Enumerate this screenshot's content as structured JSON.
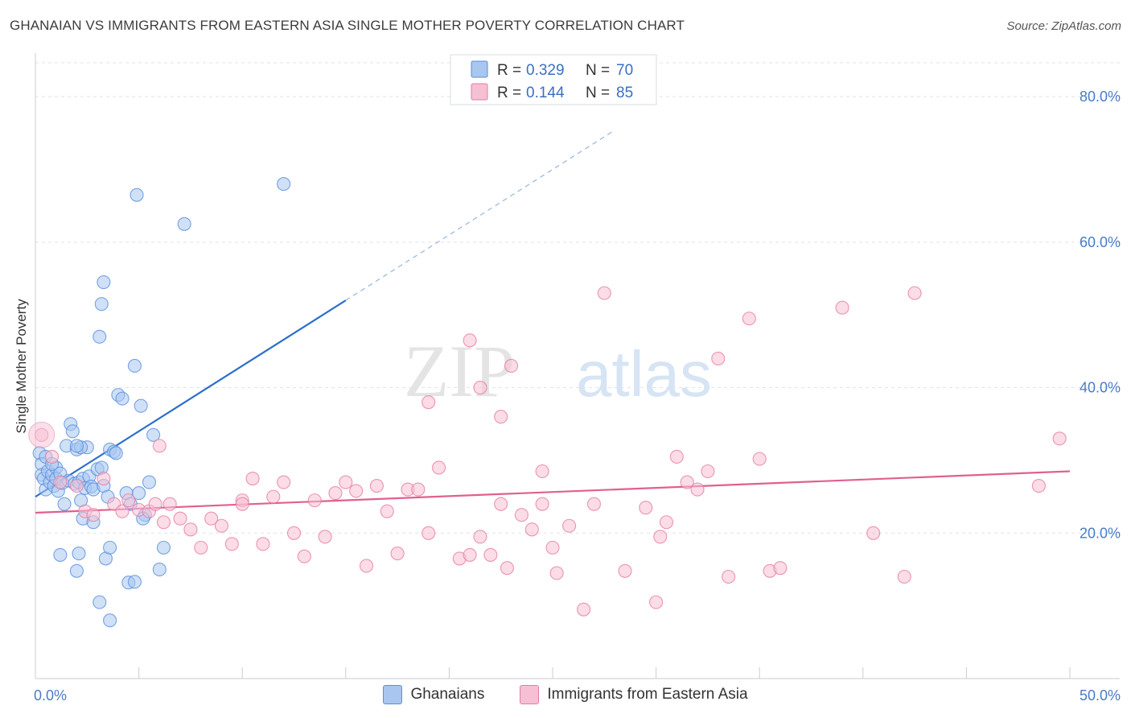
{
  "chart_data": {
    "type": "scatter",
    "title": "GHANAIAN VS IMMIGRANTS FROM EASTERN ASIA SINGLE MOTHER POVERTY CORRELATION CHART",
    "source": "Source: ZipAtlas.com",
    "ylabel": "Single Mother Poverty",
    "xlim": [
      0,
      50
    ],
    "ylim": [
      0,
      85
    ],
    "x_tick_labels": [
      "0.0%",
      "50.0%"
    ],
    "y_ticks": [
      {
        "value": 20,
        "label": "20.0%"
      },
      {
        "value": 40,
        "label": "40.0%"
      },
      {
        "value": 60,
        "label": "60.0%"
      },
      {
        "value": 80,
        "label": "80.0%"
      }
    ],
    "watermark": {
      "part1": "ZIP",
      "part2": "atlas"
    },
    "legend": {
      "r_label": "R =",
      "n_label": "N ="
    },
    "series": [
      {
        "name": "Ghanaians",
        "color": "#5a8fdc",
        "fill": "#a8c6f0",
        "line_color": "#2a6fcc",
        "R": "0.329",
        "N": "70",
        "trend": {
          "x0": 0,
          "y0": 25.0,
          "x1": 15,
          "y1": 52.0,
          "dash_to_x": 28
        },
        "points": [
          [
            0.2,
            31.0
          ],
          [
            0.3,
            29.5
          ],
          [
            0.3,
            28.0
          ],
          [
            0.4,
            27.5
          ],
          [
            0.5,
            30.5
          ],
          [
            0.5,
            26.0
          ],
          [
            0.6,
            28.5
          ],
          [
            0.7,
            27.0
          ],
          [
            0.8,
            28.0
          ],
          [
            0.9,
            26.5
          ],
          [
            1.0,
            29.0
          ],
          [
            1.0,
            27.5
          ],
          [
            1.1,
            25.8
          ],
          [
            1.2,
            28.2
          ],
          [
            1.3,
            26.9
          ],
          [
            1.4,
            24.0
          ],
          [
            1.5,
            32.0
          ],
          [
            1.6,
            27.2
          ],
          [
            1.7,
            35.0
          ],
          [
            1.8,
            34.0
          ],
          [
            1.9,
            26.8
          ],
          [
            2.0,
            31.5
          ],
          [
            2.1,
            27.0
          ],
          [
            2.2,
            24.5
          ],
          [
            2.3,
            27.5
          ],
          [
            2.4,
            26.2
          ],
          [
            2.5,
            31.8
          ],
          [
            2.6,
            27.8
          ],
          [
            2.7,
            26.4
          ],
          [
            2.8,
            26.0
          ],
          [
            2.2,
            31.8
          ],
          [
            2.0,
            32.0
          ],
          [
            3.0,
            28.8
          ],
          [
            3.2,
            29.0
          ],
          [
            3.3,
            26.5
          ],
          [
            3.5,
            25.0
          ],
          [
            3.6,
            31.5
          ],
          [
            3.8,
            31.2
          ],
          [
            3.9,
            31.0
          ],
          [
            4.0,
            39.0
          ],
          [
            4.2,
            38.5
          ],
          [
            4.4,
            25.5
          ],
          [
            4.6,
            24.0
          ],
          [
            4.8,
            43.0
          ],
          [
            5.0,
            25.5
          ],
          [
            5.1,
            37.5
          ],
          [
            5.3,
            22.5
          ],
          [
            5.5,
            27.0
          ],
          [
            5.7,
            33.5
          ],
          [
            6.0,
            15.0
          ],
          [
            6.2,
            18.0
          ],
          [
            3.1,
            47.0
          ],
          [
            3.2,
            51.5
          ],
          [
            3.3,
            54.5
          ],
          [
            4.9,
            66.5
          ],
          [
            7.2,
            62.5
          ],
          [
            12.0,
            68.0
          ],
          [
            1.2,
            17.0
          ],
          [
            2.1,
            17.2
          ],
          [
            3.4,
            16.5
          ],
          [
            3.6,
            18.0
          ],
          [
            2.0,
            14.8
          ],
          [
            3.1,
            10.5
          ],
          [
            3.6,
            8.0
          ],
          [
            4.5,
            13.2
          ],
          [
            4.8,
            13.3
          ],
          [
            5.2,
            22.0
          ],
          [
            2.3,
            22.0
          ],
          [
            2.8,
            21.5
          ],
          [
            0.8,
            29.5
          ]
        ],
        "radius": 8
      },
      {
        "name": "Immigrants from Eastern Asia",
        "color": "#e37ea0",
        "fill": "#f7bfd3",
        "line_color": "#e0608f",
        "R": "0.144",
        "N": "85",
        "trend": {
          "x0": 0,
          "y0": 22.8,
          "x1": 50,
          "y1": 28.5
        },
        "points": [
          [
            0.3,
            33.5
          ],
          [
            0.8,
            30.5
          ],
          [
            1.2,
            27.0
          ],
          [
            2.0,
            26.5
          ],
          [
            2.4,
            23.0
          ],
          [
            2.8,
            22.5
          ],
          [
            3.3,
            27.5
          ],
          [
            3.8,
            24.0
          ],
          [
            4.2,
            23.0
          ],
          [
            4.5,
            24.5
          ],
          [
            5.0,
            23.2
          ],
          [
            5.5,
            23.0
          ],
          [
            5.8,
            24.0
          ],
          [
            6.2,
            21.5
          ],
          [
            6.5,
            24.0
          ],
          [
            7.0,
            22.0
          ],
          [
            7.5,
            20.5
          ],
          [
            8.0,
            18.0
          ],
          [
            8.5,
            22.0
          ],
          [
            9.0,
            21.0
          ],
          [
            9.5,
            18.5
          ],
          [
            10.0,
            24.5
          ],
          [
            10.5,
            27.5
          ],
          [
            11.0,
            18.5
          ],
          [
            11.5,
            25.0
          ],
          [
            12.0,
            27.0
          ],
          [
            12.5,
            20.0
          ],
          [
            13.0,
            16.8
          ],
          [
            13.5,
            24.5
          ],
          [
            14.0,
            19.5
          ],
          [
            14.5,
            25.5
          ],
          [
            15.0,
            27.0
          ],
          [
            15.5,
            25.8
          ],
          [
            16.0,
            15.5
          ],
          [
            16.5,
            26.5
          ],
          [
            17.0,
            23.0
          ],
          [
            17.5,
            17.2
          ],
          [
            18.0,
            26.0
          ],
          [
            18.5,
            26.0
          ],
          [
            19.0,
            20.0
          ],
          [
            19.5,
            29.0
          ],
          [
            20.5,
            16.5
          ],
          [
            21.0,
            17.0
          ],
          [
            21.5,
            19.5
          ],
          [
            22.0,
            17.0
          ],
          [
            22.5,
            24.0
          ],
          [
            22.8,
            15.2
          ],
          [
            23.5,
            22.5
          ],
          [
            24.0,
            20.5
          ],
          [
            24.5,
            28.5
          ],
          [
            25.0,
            18.0
          ],
          [
            25.2,
            14.5
          ],
          [
            25.8,
            21.0
          ],
          [
            26.5,
            9.5
          ],
          [
            27.0,
            24.0
          ],
          [
            27.5,
            53.0
          ],
          [
            28.5,
            14.8
          ],
          [
            29.5,
            23.5
          ],
          [
            30.0,
            10.5
          ],
          [
            30.2,
            19.5
          ],
          [
            30.5,
            21.5
          ],
          [
            31.0,
            30.5
          ],
          [
            31.5,
            27.0
          ],
          [
            32.0,
            26.0
          ],
          [
            32.5,
            28.5
          ],
          [
            33.5,
            14.0
          ],
          [
            33.0,
            44.0
          ],
          [
            35.5,
            14.8
          ],
          [
            36.0,
            15.2
          ],
          [
            35.0,
            30.2
          ],
          [
            34.5,
            49.5
          ],
          [
            24.5,
            24.0
          ],
          [
            21.0,
            46.5
          ],
          [
            23.0,
            43.0
          ],
          [
            19.0,
            38.0
          ],
          [
            21.5,
            40.0
          ],
          [
            22.5,
            36.0
          ],
          [
            6.0,
            32.0
          ],
          [
            39.0,
            51.0
          ],
          [
            40.5,
            20.0
          ],
          [
            42.0,
            14.0
          ],
          [
            42.5,
            53.0
          ],
          [
            49.5,
            33.0
          ],
          [
            48.5,
            26.5
          ],
          [
            10.0,
            24.0
          ]
        ],
        "radius": 8
      }
    ]
  }
}
